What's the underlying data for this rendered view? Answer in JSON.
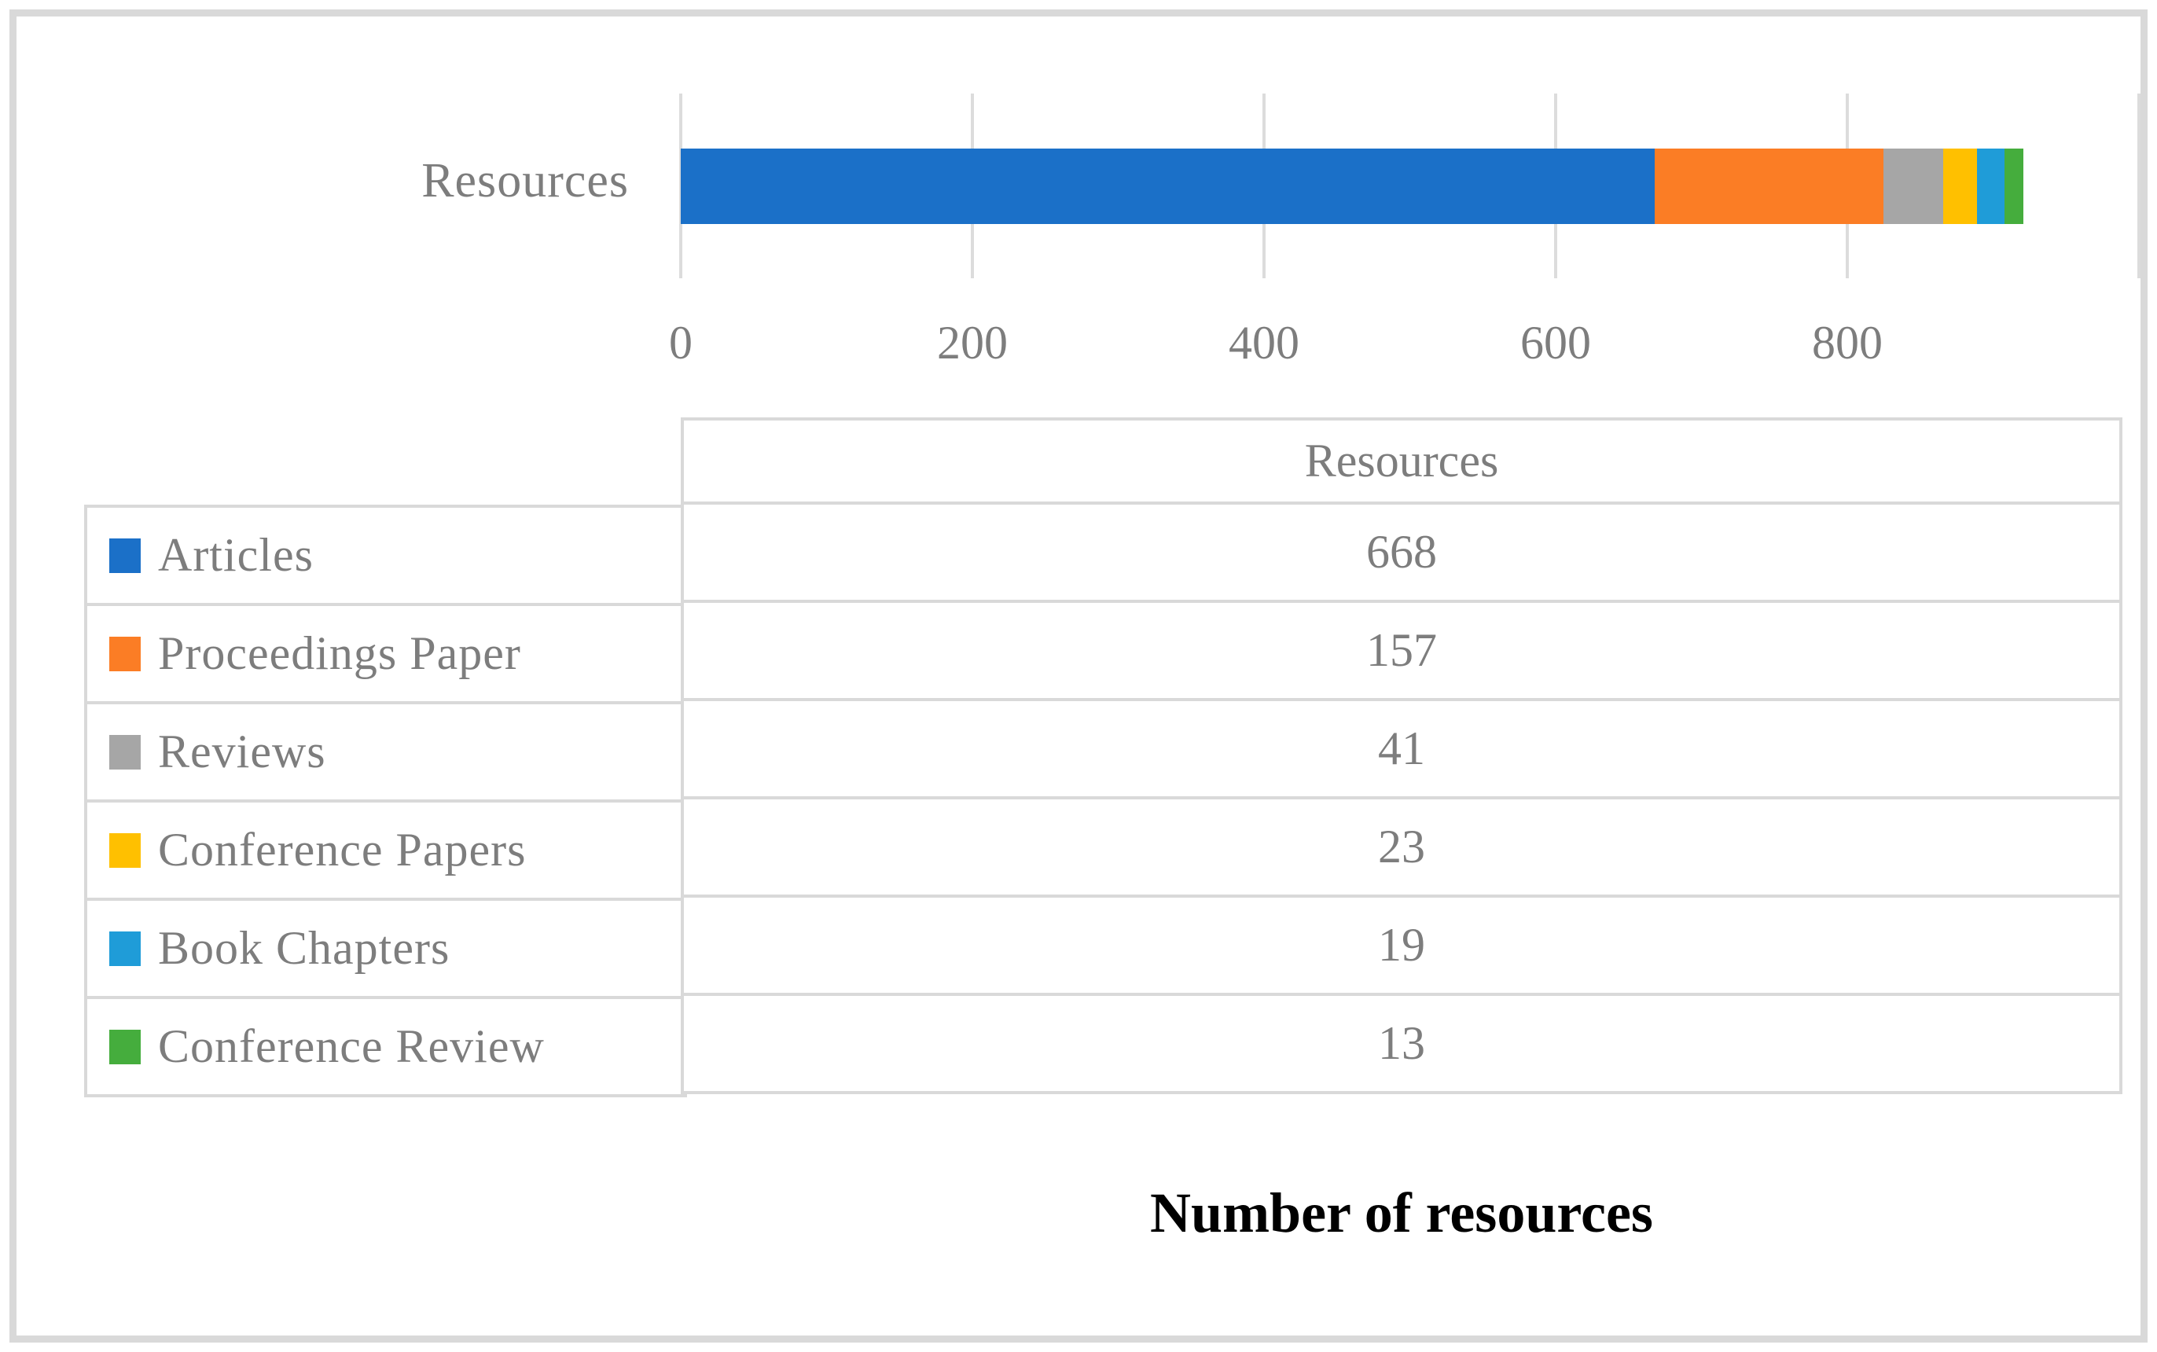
{
  "figure": {
    "background": "#ffffff",
    "border_color": "#d9d9d9"
  },
  "title": "Number of resources",
  "chart_data": {
    "type": "bar",
    "orientation": "horizontal-stacked",
    "category_label": "Resources",
    "series": [
      {
        "name": "Articles",
        "value": 668,
        "color": "#1b70c8"
      },
      {
        "name": "Proceedings Paper",
        "value": 157,
        "color": "#fb7d25"
      },
      {
        "name": "Reviews",
        "value": 41,
        "color": "#a6a6a6"
      },
      {
        "name": "Conference Papers",
        "value": 23,
        "color": "#ffc000"
      },
      {
        "name": "Book Chapters",
        "value": 19,
        "color": "#1f9cd8"
      },
      {
        "name": "Conference Review",
        "value": 13,
        "color": "#45ad3d"
      }
    ],
    "xlabel": "Number of resources",
    "xlim": [
      0,
      1000
    ],
    "x_tick_labels": [
      "0",
      "200",
      "400",
      "600",
      "800"
    ],
    "x_tick_values": [
      0,
      200,
      400,
      600,
      800
    ],
    "gridline_values": [
      0,
      200,
      400,
      600,
      800,
      1000
    ],
    "grid": true,
    "text_color": "#7d7d7d",
    "legend_position": "table-below"
  },
  "table": {
    "value_column_header": "Resources"
  }
}
